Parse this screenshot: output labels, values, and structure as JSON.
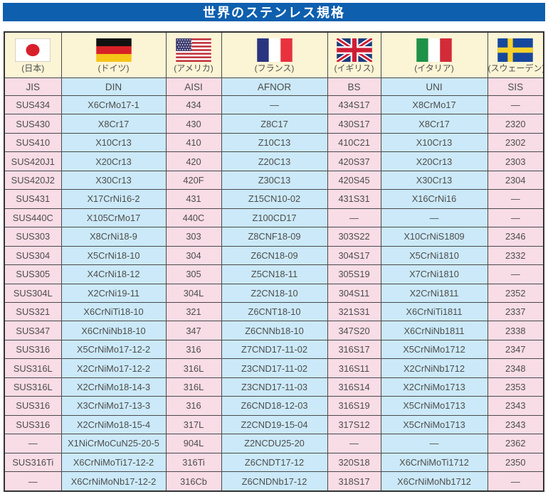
{
  "title": "世界のステンレス規格",
  "colors": {
    "title_bar": "#0e5fae",
    "flag_row_bg": "#fbf4d5",
    "column_pink": "#f8dce6",
    "column_blue": "#cbe9f8",
    "border": "#4a4a4a",
    "text": "#4d4d4d"
  },
  "header": {
    "countries": [
      {
        "label": "(日本)",
        "flag": "japan"
      },
      {
        "label": "(ドイツ)",
        "flag": "germany"
      },
      {
        "label": "(アメリカ)",
        "flag": "usa"
      },
      {
        "label": "(フランス)",
        "flag": "france"
      },
      {
        "label": "(イギリス)",
        "flag": "uk"
      },
      {
        "label": "(イタリア)",
        "flag": "italy"
      },
      {
        "label": "(スウェーデン)",
        "flag": "sweden"
      }
    ],
    "standards": [
      "JIS",
      "DIN",
      "AISI",
      "AFNOR",
      "BS",
      "UNI",
      "SIS"
    ]
  },
  "rows": [
    [
      "SUS434",
      "X6CrMo17-1",
      "434",
      "—",
      "434S17",
      "X8CrMo17",
      "—"
    ],
    [
      "SUS430",
      "X8Cr17",
      "430",
      "Z8C17",
      "430S17",
      "X8Cr17",
      "2320"
    ],
    [
      "SUS410",
      "X10Cr13",
      "410",
      "Z10C13",
      "410C21",
      "X10Cr13",
      "2302"
    ],
    [
      "SUS420J1",
      "X20Cr13",
      "420",
      "Z20C13",
      "420S37",
      "X20Cr13",
      "2303"
    ],
    [
      "SUS420J2",
      "X30Cr13",
      "420F",
      "Z30C13",
      "420S45",
      "X30Cr13",
      "2304"
    ],
    [
      "SUS431",
      "X17CrNi16-2",
      "431",
      "Z15CN10-02",
      "431S31",
      "X16CrNi16",
      "—"
    ],
    [
      "SUS440C",
      "X105CrMo17",
      "440C",
      "Z100CD17",
      "—",
      "—",
      "—"
    ],
    [
      "SUS303",
      "X8CrNi18-9",
      "303",
      "Z8CNF18-09",
      "303S22",
      "X10CrNiS1809",
      "2346"
    ],
    [
      "SUS304",
      "X5CrNi18-10",
      "304",
      "Z6CN18-09",
      "304S17",
      "X5CrNi1810",
      "2332"
    ],
    [
      "SUS305",
      "X4CrNi18-12",
      "305",
      "Z5CN18-11",
      "305S19",
      "X7CrNi1810",
      "—"
    ],
    [
      "SUS304L",
      "X2CrNi19-11",
      "304L",
      "Z2CN18-10",
      "304S11",
      "X2CrNi1811",
      "2352"
    ],
    [
      "SUS321",
      "X6CrNiTi18-10",
      "321",
      "Z6CNT18-10",
      "321S31",
      "X6CrNiTi1811",
      "2337"
    ],
    [
      "SUS347",
      "X6CrNiNb18-10",
      "347",
      "Z6CNNb18-10",
      "347S20",
      "X6CrNiNb1811",
      "2338"
    ],
    [
      "SUS316",
      "X5CrNiMo17-12-2",
      "316",
      "Z7CND17-11-02",
      "316S17",
      "X5CrNiMo1712",
      "2347"
    ],
    [
      "SUS316L",
      "X2CrNiMo17-12-2",
      "316L",
      "Z3CND17-11-02",
      "316S11",
      "X2CrNiNb1712",
      "2348"
    ],
    [
      "SUS316L",
      "X2CrNiMo18-14-3",
      "316L",
      "Z3CND17-11-03",
      "316S14",
      "X2CrNiMo1713",
      "2353"
    ],
    [
      "SUS316",
      "X3CrNiMo17-13-3",
      "316",
      "Z6CND18-12-03",
      "316S19",
      "X5CrNiMo1713",
      "2343"
    ],
    [
      "SUS316",
      "X2CrNiMo18-15-4",
      "317L",
      "Z2CND19-15-04",
      "317S12",
      "X5CrNiMo1713",
      "2343"
    ],
    [
      "—",
      "X1NiCrMoCuN25-20-5",
      "904L",
      "Z2NCDU25-20",
      "—",
      "—",
      "2362"
    ],
    [
      "SUS316Ti",
      "X6CrNiMoTi17-12-2",
      "316Ti",
      "Z6CNDT17-12",
      "320S18",
      "X6CrNiMoTi1712",
      "2350"
    ],
    [
      "—",
      "X6CrNiMoNb17-12-2",
      "316Cb",
      "Z6CNDNb17-12",
      "318S17",
      "X6CrNiMoNb1712",
      "—"
    ]
  ]
}
